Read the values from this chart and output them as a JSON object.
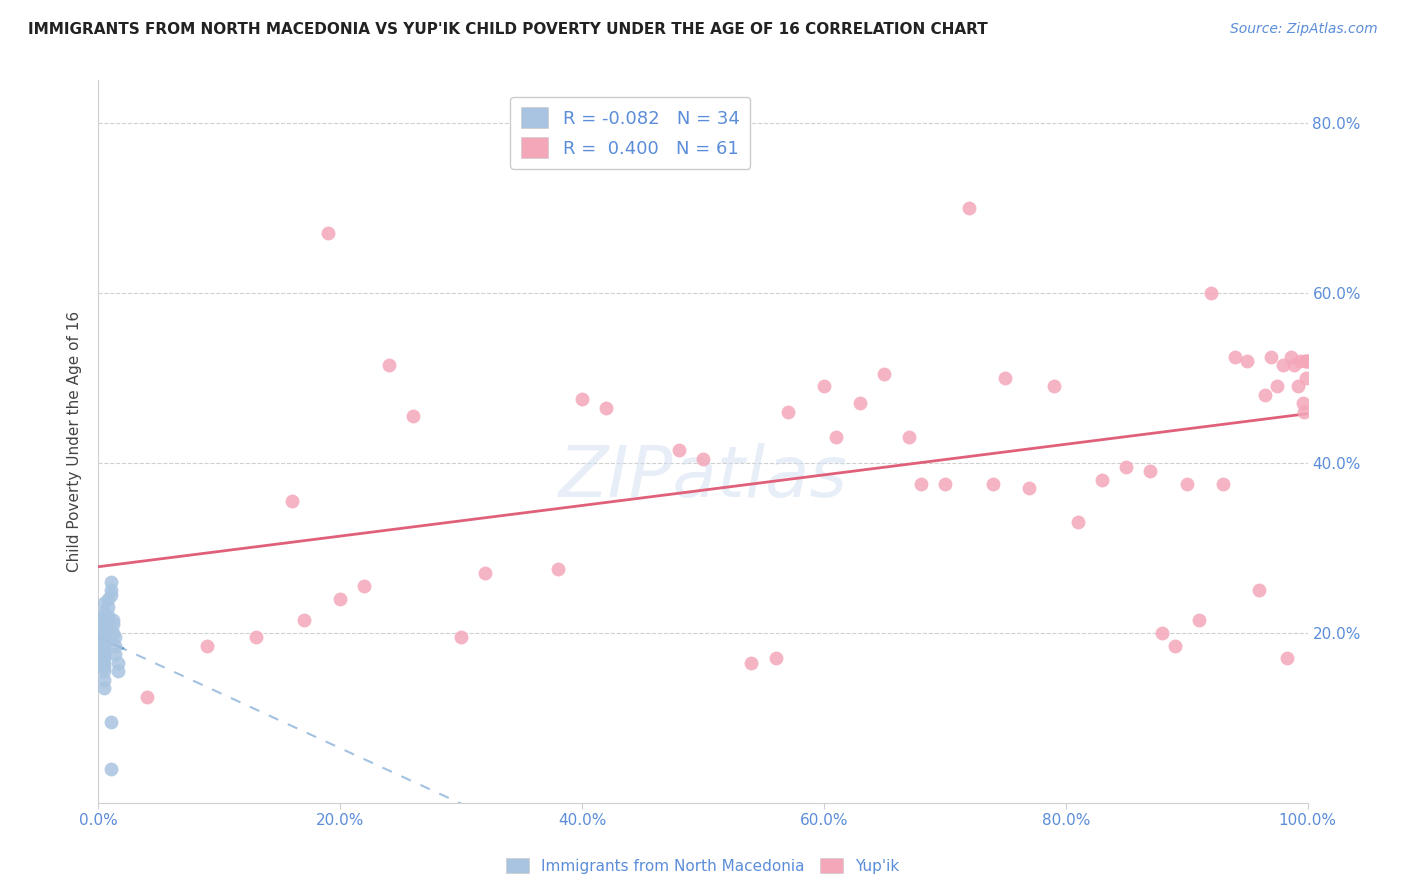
{
  "title": "IMMIGRANTS FROM NORTH MACEDONIA VS YUP'IK CHILD POVERTY UNDER THE AGE OF 16 CORRELATION CHART",
  "source": "Source: ZipAtlas.com",
  "ylabel": "Child Poverty Under the Age of 16",
  "legend_label1": "Immigrants from North Macedonia",
  "legend_label2": "Yup'ik",
  "r1": -0.082,
  "n1": 34,
  "r2": 0.4,
  "n2": 61,
  "color1": "#a8c4e0",
  "color2": "#f4a7b9",
  "line_color1": "#6699cc",
  "line_color2": "#e0607a",
  "tick_color": "#5b8dd9",
  "xlim": [
    0.0,
    1.0
  ],
  "ylim": [
    0.0,
    0.85
  ],
  "xticks": [
    0.0,
    0.2,
    0.4,
    0.6,
    0.8,
    1.0
  ],
  "yticks": [
    0.2,
    0.4,
    0.6,
    0.8
  ],
  "xticklabels": [
    "0.0%",
    "20.0%",
    "40.0%",
    "60.0%",
    "80.0%",
    "100.0%"
  ],
  "yticklabels_right": [
    "20.0%",
    "40.0%",
    "60.0%",
    "80.0%"
  ],
  "scatter1_x": [
    0.005,
    0.005,
    0.005,
    0.005,
    0.005,
    0.005,
    0.005,
    0.005,
    0.005,
    0.005,
    0.005,
    0.005,
    0.005,
    0.005,
    0.005,
    0.005,
    0.005,
    0.005,
    0.008,
    0.008,
    0.008,
    0.01,
    0.01,
    0.01,
    0.012,
    0.012,
    0.012,
    0.014,
    0.014,
    0.014,
    0.016,
    0.016,
    0.01,
    0.01
  ],
  "scatter1_y": [
    0.235,
    0.225,
    0.22,
    0.215,
    0.21,
    0.205,
    0.2,
    0.195,
    0.19,
    0.185,
    0.18,
    0.175,
    0.17,
    0.165,
    0.16,
    0.155,
    0.145,
    0.135,
    0.24,
    0.23,
    0.22,
    0.25,
    0.245,
    0.26,
    0.215,
    0.21,
    0.2,
    0.195,
    0.185,
    0.175,
    0.165,
    0.155,
    0.095,
    0.04
  ],
  "scatter2_x": [
    0.04,
    0.09,
    0.13,
    0.16,
    0.17,
    0.19,
    0.2,
    0.22,
    0.24,
    0.26,
    0.3,
    0.32,
    0.38,
    0.4,
    0.42,
    0.48,
    0.5,
    0.54,
    0.56,
    0.57,
    0.6,
    0.61,
    0.63,
    0.65,
    0.67,
    0.68,
    0.7,
    0.72,
    0.74,
    0.75,
    0.77,
    0.79,
    0.81,
    0.83,
    0.85,
    0.87,
    0.88,
    0.89,
    0.9,
    0.91,
    0.92,
    0.93,
    0.94,
    0.95,
    0.96,
    0.965,
    0.97,
    0.975,
    0.98,
    0.983,
    0.986,
    0.989,
    0.992,
    0.994,
    0.996,
    0.997,
    0.998,
    0.999,
    0.999,
    1.0,
    1.0
  ],
  "scatter2_y": [
    0.125,
    0.185,
    0.195,
    0.355,
    0.215,
    0.67,
    0.24,
    0.255,
    0.515,
    0.455,
    0.195,
    0.27,
    0.275,
    0.475,
    0.465,
    0.415,
    0.405,
    0.165,
    0.17,
    0.46,
    0.49,
    0.43,
    0.47,
    0.505,
    0.43,
    0.375,
    0.375,
    0.7,
    0.375,
    0.5,
    0.37,
    0.49,
    0.33,
    0.38,
    0.395,
    0.39,
    0.2,
    0.185,
    0.375,
    0.215,
    0.6,
    0.375,
    0.525,
    0.52,
    0.25,
    0.48,
    0.525,
    0.49,
    0.515,
    0.17,
    0.525,
    0.515,
    0.49,
    0.52,
    0.47,
    0.46,
    0.52,
    0.5,
    0.52,
    0.52,
    0.52
  ]
}
